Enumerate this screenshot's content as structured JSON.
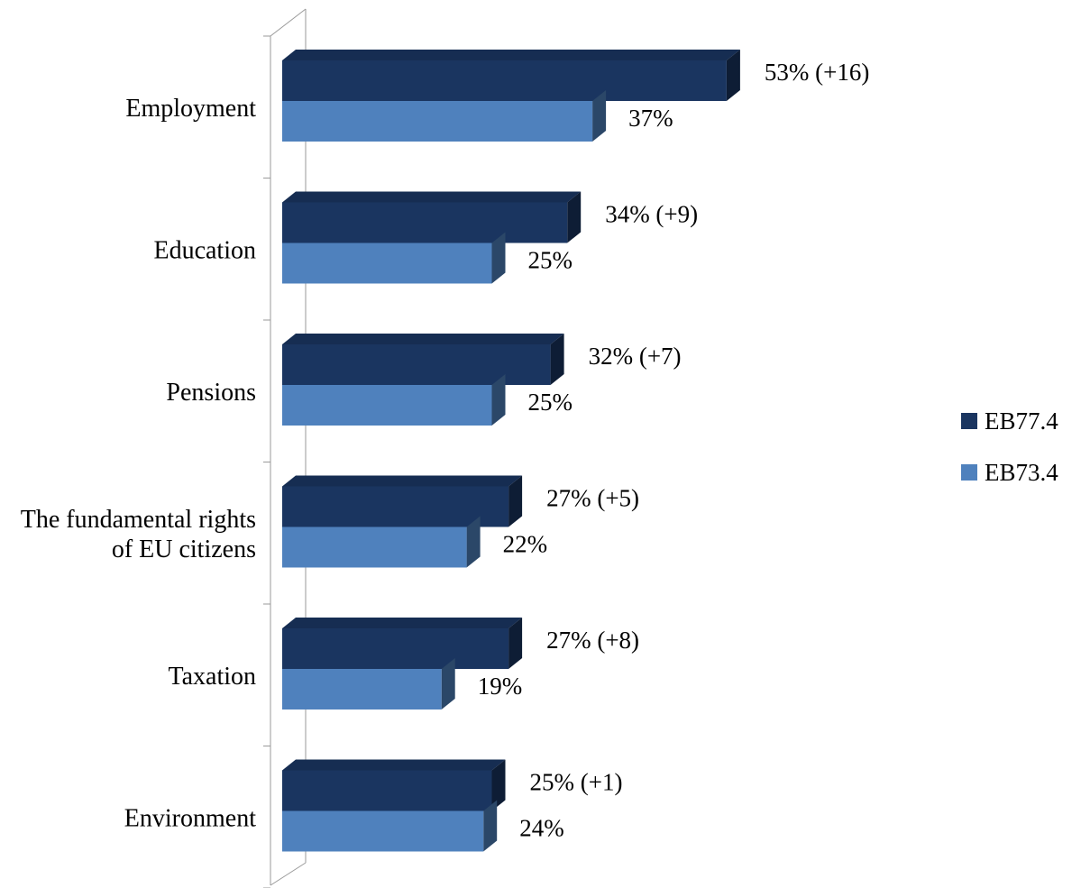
{
  "chart_data": {
    "type": "bar",
    "orientation": "horizontal",
    "style": "3d",
    "categories": [
      [
        "Employment"
      ],
      [
        "Education"
      ],
      [
        "Pensions"
      ],
      [
        "The fundamental rights",
        "of EU citizens"
      ],
      [
        "Taxation"
      ],
      [
        "Environment"
      ]
    ],
    "series": [
      {
        "name": "EB77.4",
        "color": "#1a3560",
        "values": [
          53,
          34,
          32,
          27,
          27,
          25
        ],
        "labels": [
          "53% (+16)",
          "34% (+9)",
          "32% (+7)",
          "27% (+5)",
          "27% (+8)",
          "25% (+1)"
        ]
      },
      {
        "name": "EB73.4",
        "color": "#4f81bd",
        "values": [
          37,
          25,
          25,
          22,
          19,
          24
        ],
        "labels": [
          "37%",
          "25%",
          "25%",
          "22%",
          "19%",
          "24%"
        ]
      }
    ],
    "xlim": [
      0,
      100
    ],
    "unit": "%",
    "grid": false,
    "legend_position": "right"
  }
}
